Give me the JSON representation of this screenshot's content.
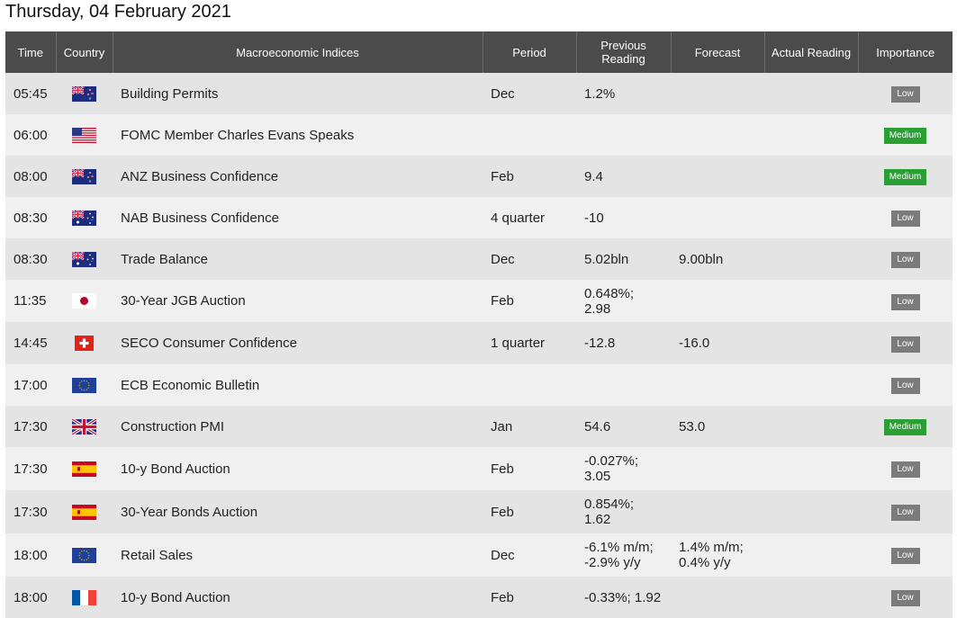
{
  "page": {
    "title": "Thursday, 04 February 2021"
  },
  "table": {
    "headers": {
      "time": "Time",
      "country": "Country",
      "index": "Macroeconomic Indices",
      "period": "Period",
      "previous_line1": "Previous",
      "previous_line2": "Reading",
      "forecast": "Forecast",
      "actual": "Actual Reading",
      "importance": "Importance"
    },
    "rows": [
      {
        "time": "05:45",
        "flag": "nz-flag-icon",
        "index": "Building Permits",
        "period": "Dec",
        "prev1": "1.2%",
        "prev2": "",
        "fc1": "",
        "fc2": "",
        "actual": "",
        "importance": "Low"
      },
      {
        "time": "06:00",
        "flag": "us-flag-icon",
        "index": "FOMC Member Charles Evans Speaks",
        "period": "",
        "prev1": "",
        "prev2": "",
        "fc1": "",
        "fc2": "",
        "actual": "",
        "importance": "Medium"
      },
      {
        "time": "08:00",
        "flag": "nz-flag-icon",
        "index": "ANZ Business Confidence",
        "period": "Feb",
        "prev1": "9.4",
        "prev2": "",
        "fc1": "",
        "fc2": "",
        "actual": "",
        "importance": "Medium"
      },
      {
        "time": "08:30",
        "flag": "au-flag-icon",
        "index": "NAB Business Confidence",
        "period": "4 quarter",
        "prev1": "-10",
        "prev2": "",
        "fc1": "",
        "fc2": "",
        "actual": "",
        "importance": "Low"
      },
      {
        "time": "08:30",
        "flag": "au-flag-icon",
        "index": "Trade Balance",
        "period": "Dec",
        "prev1": "5.02bln",
        "prev2": "",
        "fc1": "9.00bln",
        "fc2": "",
        "actual": "",
        "importance": "Low"
      },
      {
        "time": "11:35",
        "flag": "jp-flag-icon",
        "index": "30-Year JGB Auction",
        "period": "Feb",
        "prev1": "0.648%;",
        "prev2": "2.98",
        "fc1": "",
        "fc2": "",
        "actual": "",
        "importance": "Low"
      },
      {
        "time": "14:45",
        "flag": "ch-flag-icon",
        "index": "SECO Consumer Confidence",
        "period": "1 quarter",
        "prev1": "-12.8",
        "prev2": "",
        "fc1": "-16.0",
        "fc2": "",
        "actual": "",
        "importance": "Low"
      },
      {
        "time": "17:00",
        "flag": "eu-flag-icon",
        "index": "ECB Economic Bulletin",
        "period": "",
        "prev1": "",
        "prev2": "",
        "fc1": "",
        "fc2": "",
        "actual": "",
        "importance": "Low"
      },
      {
        "time": "17:30",
        "flag": "gb-flag-icon",
        "index": "Construction PMI",
        "period": "Jan",
        "prev1": "54.6",
        "prev2": "",
        "fc1": "53.0",
        "fc2": "",
        "actual": "",
        "importance": "Medium"
      },
      {
        "time": "17:30",
        "flag": "es-flag-icon",
        "index": "10-y Bond Auction",
        "period": "Feb",
        "prev1": "-0.027%;",
        "prev2": "3.05",
        "fc1": "",
        "fc2": "",
        "actual": "",
        "importance": "Low"
      },
      {
        "time": "17:30",
        "flag": "es-flag-icon",
        "index": "30-Year Bonds Auction",
        "period": "Feb",
        "prev1": "0.854%;",
        "prev2": "1.62",
        "fc1": "",
        "fc2": "",
        "actual": "",
        "importance": "Low"
      },
      {
        "time": "18:00",
        "flag": "eu-flag-icon",
        "index": "Retail Sales",
        "period": "Dec",
        "prev1": "-6.1% m/m;",
        "prev2": "-2.9% y/y",
        "fc1": "1.4% m/m;",
        "fc2": "0.4% y/y",
        "actual": "",
        "importance": "Low"
      },
      {
        "time": "18:00",
        "flag": "fr-flag-icon",
        "index": "10-y Bond Auction",
        "period": "Feb",
        "prev1": "-0.33%; 1.92",
        "prev2": "",
        "fc1": "",
        "fc2": "",
        "actual": "",
        "importance": "Low"
      }
    ]
  },
  "colors": {
    "header_bg": "#4b4b4b",
    "row_odd": "#e4e4e4",
    "row_even": "#f0f0f0",
    "badge_low": "#7b7b7b",
    "badge_medium": "#2aa034"
  }
}
